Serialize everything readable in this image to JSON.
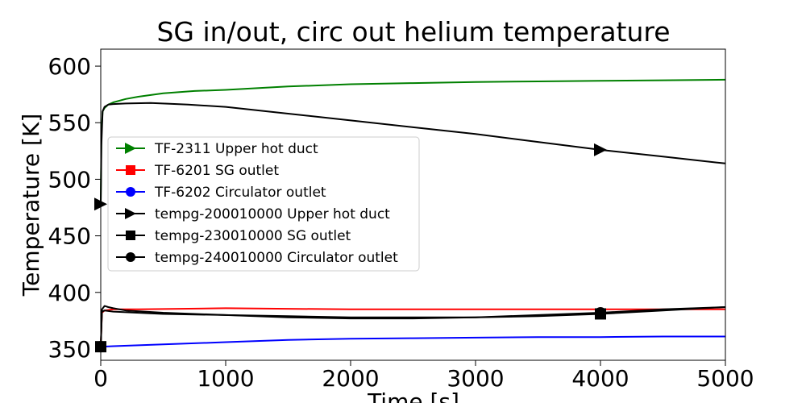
{
  "chart_data": {
    "type": "line",
    "title": "SG in/out, circ out helium temperature",
    "xlabel": "Time [s]",
    "ylabel": "Temperature [K]",
    "xlim": [
      0,
      5000
    ],
    "ylim": [
      340,
      615
    ],
    "xticks": [
      0,
      1000,
      2000,
      3000,
      4000,
      5000
    ],
    "yticks": [
      350,
      400,
      450,
      500,
      550,
      600
    ],
    "grid": false,
    "legend_location": "center-left",
    "series": [
      {
        "name": "TF-2311 Upper hot duct",
        "color": "#008000",
        "marker": "triangle-right",
        "x": [
          0,
          5,
          15,
          30,
          60,
          100,
          200,
          300,
          500,
          750,
          1000,
          1500,
          2000,
          2500,
          3000,
          3500,
          4000,
          4500,
          5000
        ],
        "y": [
          478,
          540,
          560,
          563,
          566,
          568,
          571,
          573,
          576,
          578,
          579,
          582,
          584,
          585,
          586,
          586.5,
          587,
          587.5,
          588
        ]
      },
      {
        "name": "TF-6201 SG outlet",
        "color": "#ff0000",
        "marker": "square",
        "x": [
          0,
          10,
          30,
          100,
          300,
          1000,
          2000,
          3000,
          4000,
          4500,
          5000
        ],
        "y": [
          352,
          382,
          384,
          385,
          385,
          386,
          385,
          385,
          385,
          385,
          385
        ]
      },
      {
        "name": "TF-6202 Circulator outlet",
        "color": "#0000ff",
        "marker": "circle",
        "x": [
          0,
          100,
          500,
          1000,
          1500,
          2000,
          2500,
          3000,
          3500,
          4000,
          4500,
          5000
        ],
        "y": [
          352,
          352.5,
          354,
          356,
          358,
          359,
          359.5,
          360,
          360.5,
          360.5,
          361,
          361
        ]
      },
      {
        "name": "tempg-200010000 Upper hot duct",
        "color": "#000000",
        "marker": "triangle-right",
        "marker_at": [
          0,
          4000
        ],
        "x": [
          0,
          5,
          15,
          30,
          60,
          100,
          200,
          400,
          700,
          1000,
          1500,
          2000,
          2500,
          3000,
          3500,
          4000,
          4500,
          5000
        ],
        "y": [
          478,
          530,
          560,
          564,
          566,
          566.5,
          567,
          567.5,
          566,
          564,
          558,
          552,
          546,
          540,
          533,
          526,
          520,
          514
        ]
      },
      {
        "name": "tempg-230010000 SG outlet",
        "color": "#000000",
        "marker": "square",
        "marker_at": [
          0,
          4000
        ],
        "x": [
          0,
          10,
          30,
          100,
          500,
          1000,
          1500,
          2000,
          2500,
          3000,
          3500,
          4000,
          4500,
          5000
        ],
        "y": [
          352,
          383,
          384,
          383,
          381,
          380,
          379,
          378,
          378,
          378,
          379,
          381,
          384,
          387
        ]
      },
      {
        "name": "tempg-240010000 Circulator outlet",
        "color": "#000000",
        "marker": "circle",
        "marker_at": [
          0,
          4000
        ],
        "x": [
          0,
          10,
          30,
          60,
          100,
          200,
          500,
          1000,
          1500,
          2000,
          2500,
          3000,
          3500,
          4000,
          4500,
          5000
        ],
        "y": [
          352,
          385,
          388,
          387,
          386,
          384,
          382,
          380,
          378,
          377,
          377,
          378,
          380,
          382,
          385,
          387
        ]
      }
    ]
  }
}
